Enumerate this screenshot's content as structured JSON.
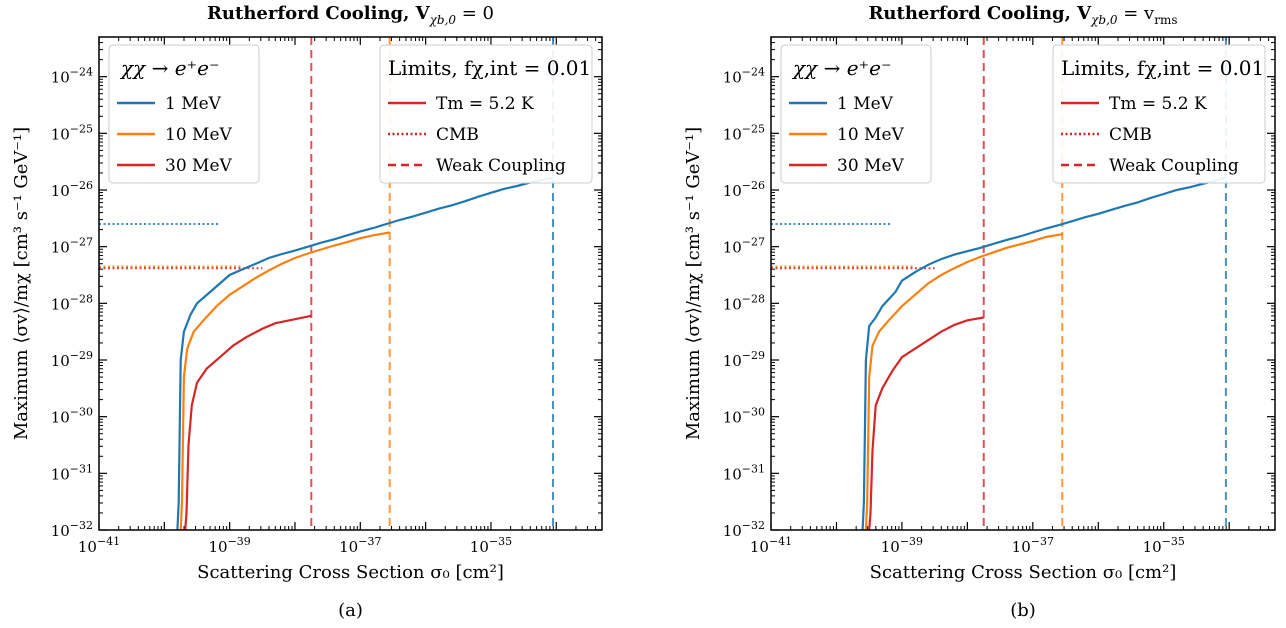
{
  "chart_data": [
    {
      "type": "line",
      "title": "Rutherford Cooling, V",
      "title_sub": "χb,0",
      "title_tail": " = 0",
      "caption": "(a)",
      "xlabel": "Scattering Cross Section σ₀ [cm²]",
      "ylabel": "Maximum ⟨σv⟩/mχ [cm³ s⁻¹ GeV⁻¹]",
      "xscale": "log",
      "yscale": "log",
      "xlim": [
        -41,
        -33.3
      ],
      "ylim": [
        -32,
        -23.3
      ],
      "xticks": [
        {
          "base": "10",
          "exp": "−41"
        },
        {
          "base": "10",
          "exp": "−39"
        },
        {
          "base": "10",
          "exp": "−37"
        },
        {
          "base": "10",
          "exp": "−35"
        }
      ],
      "xtick_values": [
        -41,
        -39,
        -37,
        -35
      ],
      "yticks": [
        {
          "base": "10",
          "exp": "−32"
        },
        {
          "base": "10",
          "exp": "−31"
        },
        {
          "base": "10",
          "exp": "−30"
        },
        {
          "base": "10",
          "exp": "−29"
        },
        {
          "base": "10",
          "exp": "−28"
        },
        {
          "base": "10",
          "exp": "−27"
        },
        {
          "base": "10",
          "exp": "−26"
        },
        {
          "base": "10",
          "exp": "−25"
        },
        {
          "base": "10",
          "exp": "−24"
        }
      ],
      "ytick_values": [
        -32,
        -31,
        -30,
        -29,
        -28,
        -27,
        -26,
        -25,
        -24
      ],
      "legend_left": {
        "title": "χχ → e⁺e⁻",
        "placement": "top-left",
        "entries": [
          {
            "label": "1 MeV",
            "color": "#1f77b4"
          },
          {
            "label": "10 MeV",
            "color": "#ff7f0e"
          },
          {
            "label": "30 MeV",
            "color": "#d62728"
          }
        ]
      },
      "legend_right": {
        "title": "Limits, fχ,int = 0.01",
        "placement": "top-right",
        "entries": [
          {
            "label": "Tm = 5.2 K",
            "style": "solid"
          },
          {
            "label": "CMB",
            "style": "dotted"
          },
          {
            "label": "Weak Coupling",
            "style": "dashed"
          }
        ]
      },
      "series": [
        {
          "name": "1 MeV",
          "color": "#1f77b4",
          "x": [
            -39.8,
            -39.78,
            -39.75,
            -39.7,
            -39.6,
            -39.5,
            -39.3,
            -39.0,
            -38.8,
            -38.6,
            -38.4,
            -38.2,
            -38.0,
            -37.8,
            -37.6,
            -37.4,
            -37.2,
            -37.0,
            -36.8,
            -36.6,
            -36.4,
            -36.2,
            -36.0,
            -35.8,
            -35.6,
            -35.4,
            -35.2,
            -35.0,
            -34.8,
            -34.6,
            -34.4,
            -34.2,
            -34.05
          ],
          "y": [
            -32,
            -31.5,
            -29.0,
            -28.5,
            -28.2,
            -28.0,
            -27.8,
            -27.5,
            -27.4,
            -27.3,
            -27.2,
            -27.13,
            -27.07,
            -27.0,
            -26.93,
            -26.87,
            -26.8,
            -26.73,
            -26.67,
            -26.6,
            -26.53,
            -26.47,
            -26.4,
            -26.33,
            -26.27,
            -26.2,
            -26.12,
            -26.05,
            -25.98,
            -25.93,
            -25.87,
            -25.82,
            -25.78
          ]
        },
        {
          "name": "10 MeV",
          "color": "#ff7f0e",
          "x": [
            -39.75,
            -39.73,
            -39.7,
            -39.65,
            -39.55,
            -39.4,
            -39.2,
            -39.0,
            -38.8,
            -38.6,
            -38.4,
            -38.2,
            -38.0,
            -37.8,
            -37.6,
            -37.4,
            -37.2,
            -37.0,
            -36.8,
            -36.55
          ],
          "y": [
            -32,
            -31.5,
            -29.3,
            -28.8,
            -28.5,
            -28.3,
            -28.05,
            -27.85,
            -27.7,
            -27.55,
            -27.42,
            -27.3,
            -27.2,
            -27.12,
            -27.05,
            -26.98,
            -26.92,
            -26.85,
            -26.8,
            -26.75
          ]
        },
        {
          "name": "30 MeV",
          "color": "#d62728",
          "x": [
            -39.68,
            -39.66,
            -39.63,
            -39.58,
            -39.5,
            -39.35,
            -39.15,
            -38.95,
            -38.75,
            -38.5,
            -38.3,
            -38.0,
            -37.75
          ],
          "y": [
            -32,
            -31.7,
            -30.5,
            -29.8,
            -29.4,
            -29.15,
            -28.95,
            -28.75,
            -28.6,
            -28.45,
            -28.35,
            -28.28,
            -28.22
          ]
        }
      ],
      "limits": {
        "cmb": [
          {
            "color": "#1f77b4",
            "y": -26.6,
            "x": [
              -41,
              -39.15
            ]
          },
          {
            "color": "#ff7f0e",
            "y": -27.35,
            "x": [
              -41,
              -38.8
            ]
          },
          {
            "color": "#d62728",
            "y": -27.38,
            "x": [
              -41,
              -38.5
            ]
          }
        ],
        "weak": [
          {
            "color": "#d62728",
            "x": -37.75
          },
          {
            "color": "#ff7f0e",
            "x": -36.55
          },
          {
            "color": "#1f77b4",
            "x": -34.05
          }
        ]
      }
    },
    {
      "type": "line",
      "title": "Rutherford Cooling, V",
      "title_sub": "χb,0",
      "title_tail": " = v",
      "title_tail_sub": "rms",
      "caption": "(b)",
      "xlabel": "Scattering Cross Section σ₀ [cm²]",
      "ylabel": "Maximum ⟨σv⟩/mχ [cm³ s⁻¹ GeV⁻¹]",
      "xscale": "log",
      "yscale": "log",
      "xlim": [
        -41,
        -33.3
      ],
      "ylim": [
        -32,
        -23.3
      ],
      "xticks": [
        {
          "base": "10",
          "exp": "−41"
        },
        {
          "base": "10",
          "exp": "−39"
        },
        {
          "base": "10",
          "exp": "−37"
        },
        {
          "base": "10",
          "exp": "−35"
        }
      ],
      "xtick_values": [
        -41,
        -39,
        -37,
        -35
      ],
      "yticks": [
        {
          "base": "10",
          "exp": "−32"
        },
        {
          "base": "10",
          "exp": "−31"
        },
        {
          "base": "10",
          "exp": "−30"
        },
        {
          "base": "10",
          "exp": "−29"
        },
        {
          "base": "10",
          "exp": "−28"
        },
        {
          "base": "10",
          "exp": "−27"
        },
        {
          "base": "10",
          "exp": "−26"
        },
        {
          "base": "10",
          "exp": "−25"
        },
        {
          "base": "10",
          "exp": "−24"
        }
      ],
      "ytick_values": [
        -32,
        -31,
        -30,
        -29,
        -28,
        -27,
        -26,
        -25,
        -24
      ],
      "legend_left": {
        "title": "χχ → e⁺e⁻",
        "placement": "top-left",
        "entries": [
          {
            "label": "1 MeV",
            "color": "#1f77b4"
          },
          {
            "label": "10 MeV",
            "color": "#ff7f0e"
          },
          {
            "label": "30 MeV",
            "color": "#d62728"
          }
        ]
      },
      "legend_right": {
        "title": "Limits, fχ,int = 0.01",
        "placement": "top-right",
        "entries": [
          {
            "label": "Tm = 5.2 K",
            "style": "solid"
          },
          {
            "label": "CMB",
            "style": "dotted"
          },
          {
            "label": "Weak Coupling",
            "style": "dashed"
          }
        ]
      },
      "series": [
        {
          "name": "1 MeV",
          "color": "#1f77b4",
          "x": [
            -39.6,
            -39.58,
            -39.55,
            -39.5,
            -39.4,
            -39.3,
            -39.1,
            -39.0,
            -38.8,
            -38.6,
            -38.4,
            -38.2,
            -38.0,
            -37.8,
            -37.6,
            -37.4,
            -37.2,
            -37.0,
            -36.8,
            -36.6,
            -36.4,
            -36.2,
            -36.0,
            -35.8,
            -35.6,
            -35.4,
            -35.2,
            -35.0,
            -34.8,
            -34.6,
            -34.4,
            -34.2,
            -34.05
          ],
          "y": [
            -32,
            -31.5,
            -29.0,
            -28.4,
            -28.25,
            -28.05,
            -27.8,
            -27.6,
            -27.45,
            -27.32,
            -27.22,
            -27.14,
            -27.08,
            -27.02,
            -26.95,
            -26.88,
            -26.82,
            -26.75,
            -26.68,
            -26.62,
            -26.55,
            -26.48,
            -26.42,
            -26.35,
            -26.28,
            -26.22,
            -26.14,
            -26.07,
            -26.0,
            -25.95,
            -25.89,
            -25.83,
            -25.78
          ]
        },
        {
          "name": "10 MeV",
          "color": "#ff7f0e",
          "x": [
            -39.55,
            -39.53,
            -39.5,
            -39.45,
            -39.35,
            -39.2,
            -39.0,
            -38.8,
            -38.6,
            -38.4,
            -38.2,
            -38.0,
            -37.8,
            -37.6,
            -37.4,
            -37.2,
            -37.0,
            -36.8,
            -36.55
          ],
          "y": [
            -32,
            -31.5,
            -29.3,
            -28.75,
            -28.5,
            -28.3,
            -28.05,
            -27.85,
            -27.65,
            -27.5,
            -27.38,
            -27.27,
            -27.18,
            -27.1,
            -27.02,
            -26.96,
            -26.9,
            -26.83,
            -26.78
          ]
        },
        {
          "name": "30 MeV",
          "color": "#d62728",
          "x": [
            -39.5,
            -39.48,
            -39.45,
            -39.4,
            -39.3,
            -39.15,
            -39.0,
            -38.8,
            -38.6,
            -38.4,
            -38.2,
            -38.0,
            -37.75
          ],
          "y": [
            -32,
            -31.7,
            -30.6,
            -29.8,
            -29.5,
            -29.2,
            -28.95,
            -28.8,
            -28.65,
            -28.5,
            -28.38,
            -28.3,
            -28.25
          ]
        }
      ],
      "limits": {
        "cmb": [
          {
            "color": "#1f77b4",
            "y": -26.6,
            "x": [
              -41,
              -39.15
            ]
          },
          {
            "color": "#ff7f0e",
            "y": -27.35,
            "x": [
              -41,
              -38.8
            ]
          },
          {
            "color": "#d62728",
            "y": -27.38,
            "x": [
              -41,
              -38.5
            ]
          }
        ],
        "weak": [
          {
            "color": "#d62728",
            "x": -37.75
          },
          {
            "color": "#ff7f0e",
            "x": -36.55
          },
          {
            "color": "#1f77b4",
            "x": -34.05
          }
        ]
      }
    }
  ]
}
